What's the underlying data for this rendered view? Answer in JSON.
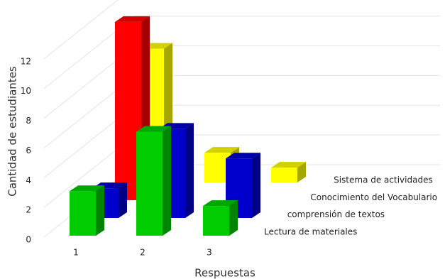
{
  "chart_data": {
    "type": "bar3d",
    "xlabel": "Respuestas",
    "ylabel": "Cantidad de estudiantes",
    "categories": [
      "1",
      "2",
      "3"
    ],
    "series": [
      {
        "name": "Lectura de materiales",
        "color": "#00cc00",
        "values": [
          3,
          7,
          2
        ]
      },
      {
        "name": "comprensión de textos",
        "color": "#0000cc",
        "values": [
          2,
          6,
          4
        ]
      },
      {
        "name": "Conocimiento del Vocabulario",
        "color": "#ff0000",
        "values": [
          12,
          0,
          0
        ]
      },
      {
        "name": "Sistema de actividades",
        "color": "#ffff00",
        "values": [
          9,
          2,
          1
        ]
      }
    ],
    "ylim": [
      0,
      14
    ],
    "yticks": [
      0,
      2,
      4,
      6,
      8,
      10,
      12
    ],
    "grid": true
  }
}
